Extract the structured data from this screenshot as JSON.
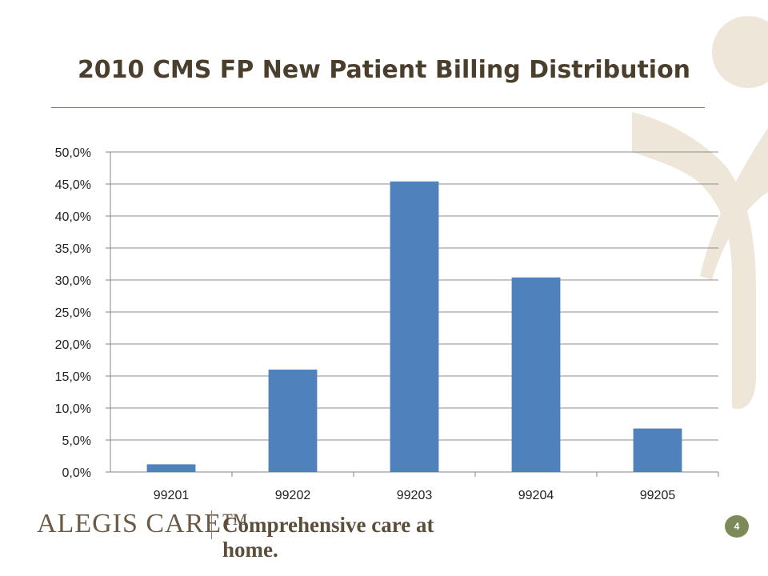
{
  "slide": {
    "title": "2010 CMS FP New Patient Billing Distribution",
    "page_number": "4"
  },
  "footer": {
    "brand": "ALEGIS CARE™",
    "tagline": "Comprehensive care at home."
  },
  "colors": {
    "bar": "#4f81bd",
    "title": "#4a3f2c",
    "watermark": "#ede6d9",
    "page_badge": "#7c8a5a"
  },
  "chart_data": {
    "type": "bar",
    "title": "2010 CMS FP New Patient Billing Distribution",
    "xlabel": "",
    "ylabel": "",
    "categories": [
      "99201",
      "99202",
      "99203",
      "99204",
      "99205"
    ],
    "values": [
      1.2,
      16.0,
      45.4,
      30.4,
      6.8
    ],
    "ylim": [
      0,
      50
    ],
    "yticks": [
      "0,0%",
      "5,0%",
      "10,0%",
      "15,0%",
      "20,0%",
      "25,0%",
      "30,0%",
      "35,0%",
      "40,0%",
      "45,0%",
      "50,0%"
    ],
    "grid": true,
    "legend": "none"
  }
}
